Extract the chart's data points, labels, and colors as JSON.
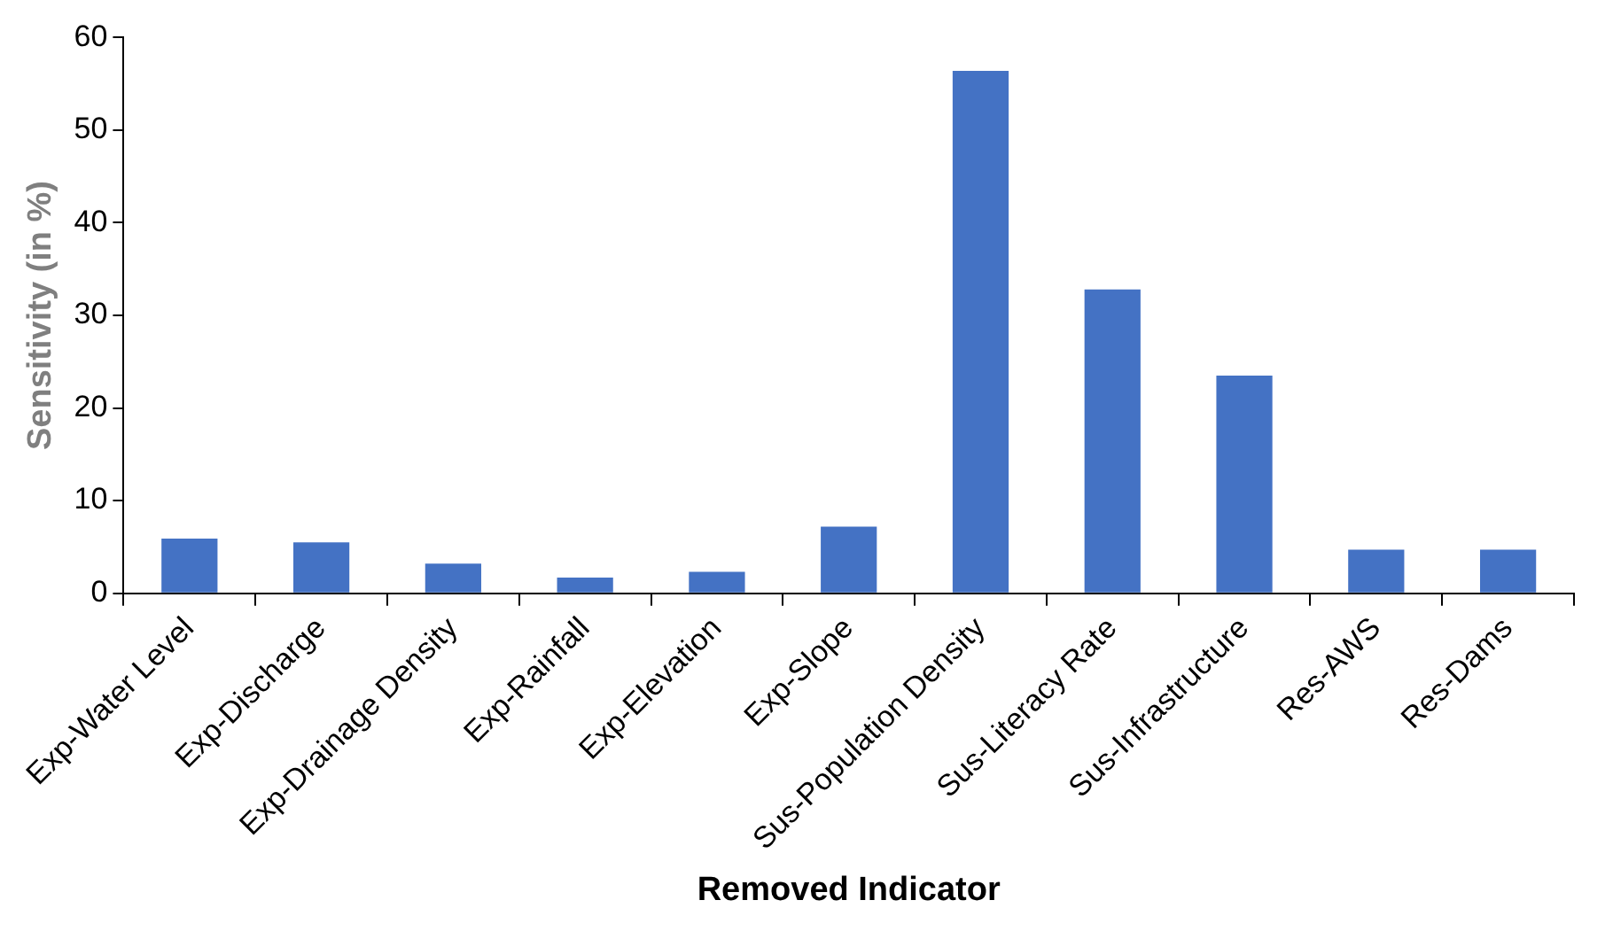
{
  "chart_data": {
    "type": "bar",
    "xlabel": "Removed Indicator",
    "ylabel": "Sensitivity (in %)",
    "categories": [
      "Exp-Water Level",
      "Exp-Discharge",
      "Exp-Drainage Density",
      "Exp-Rainfall",
      "Exp-Elevation",
      "Exp-Slope",
      "Sus-Population Density",
      "Sus-Literacy Rate",
      "Sus-Infrastructure",
      "Res-AWS",
      "Res-Dams"
    ],
    "values": [
      5.9,
      5.5,
      3.2,
      1.7,
      2.3,
      7.2,
      56.4,
      32.8,
      23.5,
      4.7,
      4.7
    ],
    "color": "#4472c4",
    "ylim": [
      0,
      60
    ],
    "yticks": [
      0,
      10,
      20,
      30,
      40,
      50,
      60
    ],
    "grid": false,
    "legend": false
  }
}
